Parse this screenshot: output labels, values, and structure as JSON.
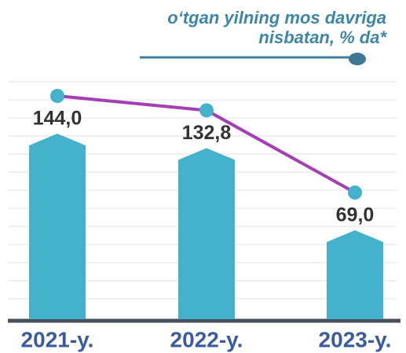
{
  "chart_data": {
    "type": "bar",
    "categories": [
      "2021-y.",
      "2022-y.",
      "2023-y."
    ],
    "series": [
      {
        "name": "o‘tgan yilning mos davriga nisbatan, % da*",
        "color": "#a43fb3",
        "values": [
          144.0,
          132.8,
          69.0
        ],
        "value_labels": [
          "144,0",
          "132,8",
          "69,0"
        ]
      }
    ],
    "bar_color": "#45b2cb"
  }
}
